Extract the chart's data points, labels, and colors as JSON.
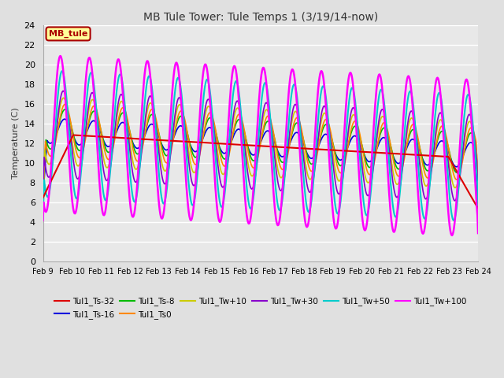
{
  "title": "MB Tule Tower: Tule Temps 1 (3/19/14-now)",
  "ylabel": "Temperature (C)",
  "ylim": [
    0,
    24
  ],
  "yticks": [
    0,
    2,
    4,
    6,
    8,
    10,
    12,
    14,
    16,
    18,
    20,
    22,
    24
  ],
  "xtick_labels": [
    "Feb 9",
    "Feb 10",
    "Feb 11",
    "Feb 12",
    "Feb 13",
    "Feb 14",
    "Feb 15",
    "Feb 16",
    "Feb 17",
    "Feb 18",
    "Feb 19",
    "Feb 20",
    "Feb 21",
    "Feb 22",
    "Feb 23",
    "Feb 24"
  ],
  "background_color": "#e0e0e0",
  "plot_background": "#e8e8e8",
  "grid_color": "white",
  "series": [
    {
      "label": "Tul1_Ts-32",
      "color": "#dd0000",
      "lw": 1.5,
      "zorder": 5
    },
    {
      "label": "Tul1_Ts-16",
      "color": "#0000dd",
      "lw": 1.2,
      "zorder": 4
    },
    {
      "label": "Tul1_Ts-8",
      "color": "#00bb00",
      "lw": 1.2,
      "zorder": 4
    },
    {
      "label": "Tul1_Ts0",
      "color": "#ff8800",
      "lw": 1.2,
      "zorder": 4
    },
    {
      "label": "Tul1_Tw+10",
      "color": "#cccc00",
      "lw": 1.2,
      "zorder": 4
    },
    {
      "label": "Tul1_Tw+30",
      "color": "#8800cc",
      "lw": 1.2,
      "zorder": 4
    },
    {
      "label": "Tul1_Tw+50",
      "color": "#00cccc",
      "lw": 1.5,
      "zorder": 4
    },
    {
      "label": "Tul1_Tw+100",
      "color": "#ff00ff",
      "lw": 1.8,
      "zorder": 6
    }
  ],
  "annotation_box": {
    "text": "MB_tule",
    "facecolor": "#ffff99",
    "edgecolor": "#aa0000",
    "textcolor": "#aa0000",
    "fontsize": 8,
    "fontweight": "bold"
  }
}
